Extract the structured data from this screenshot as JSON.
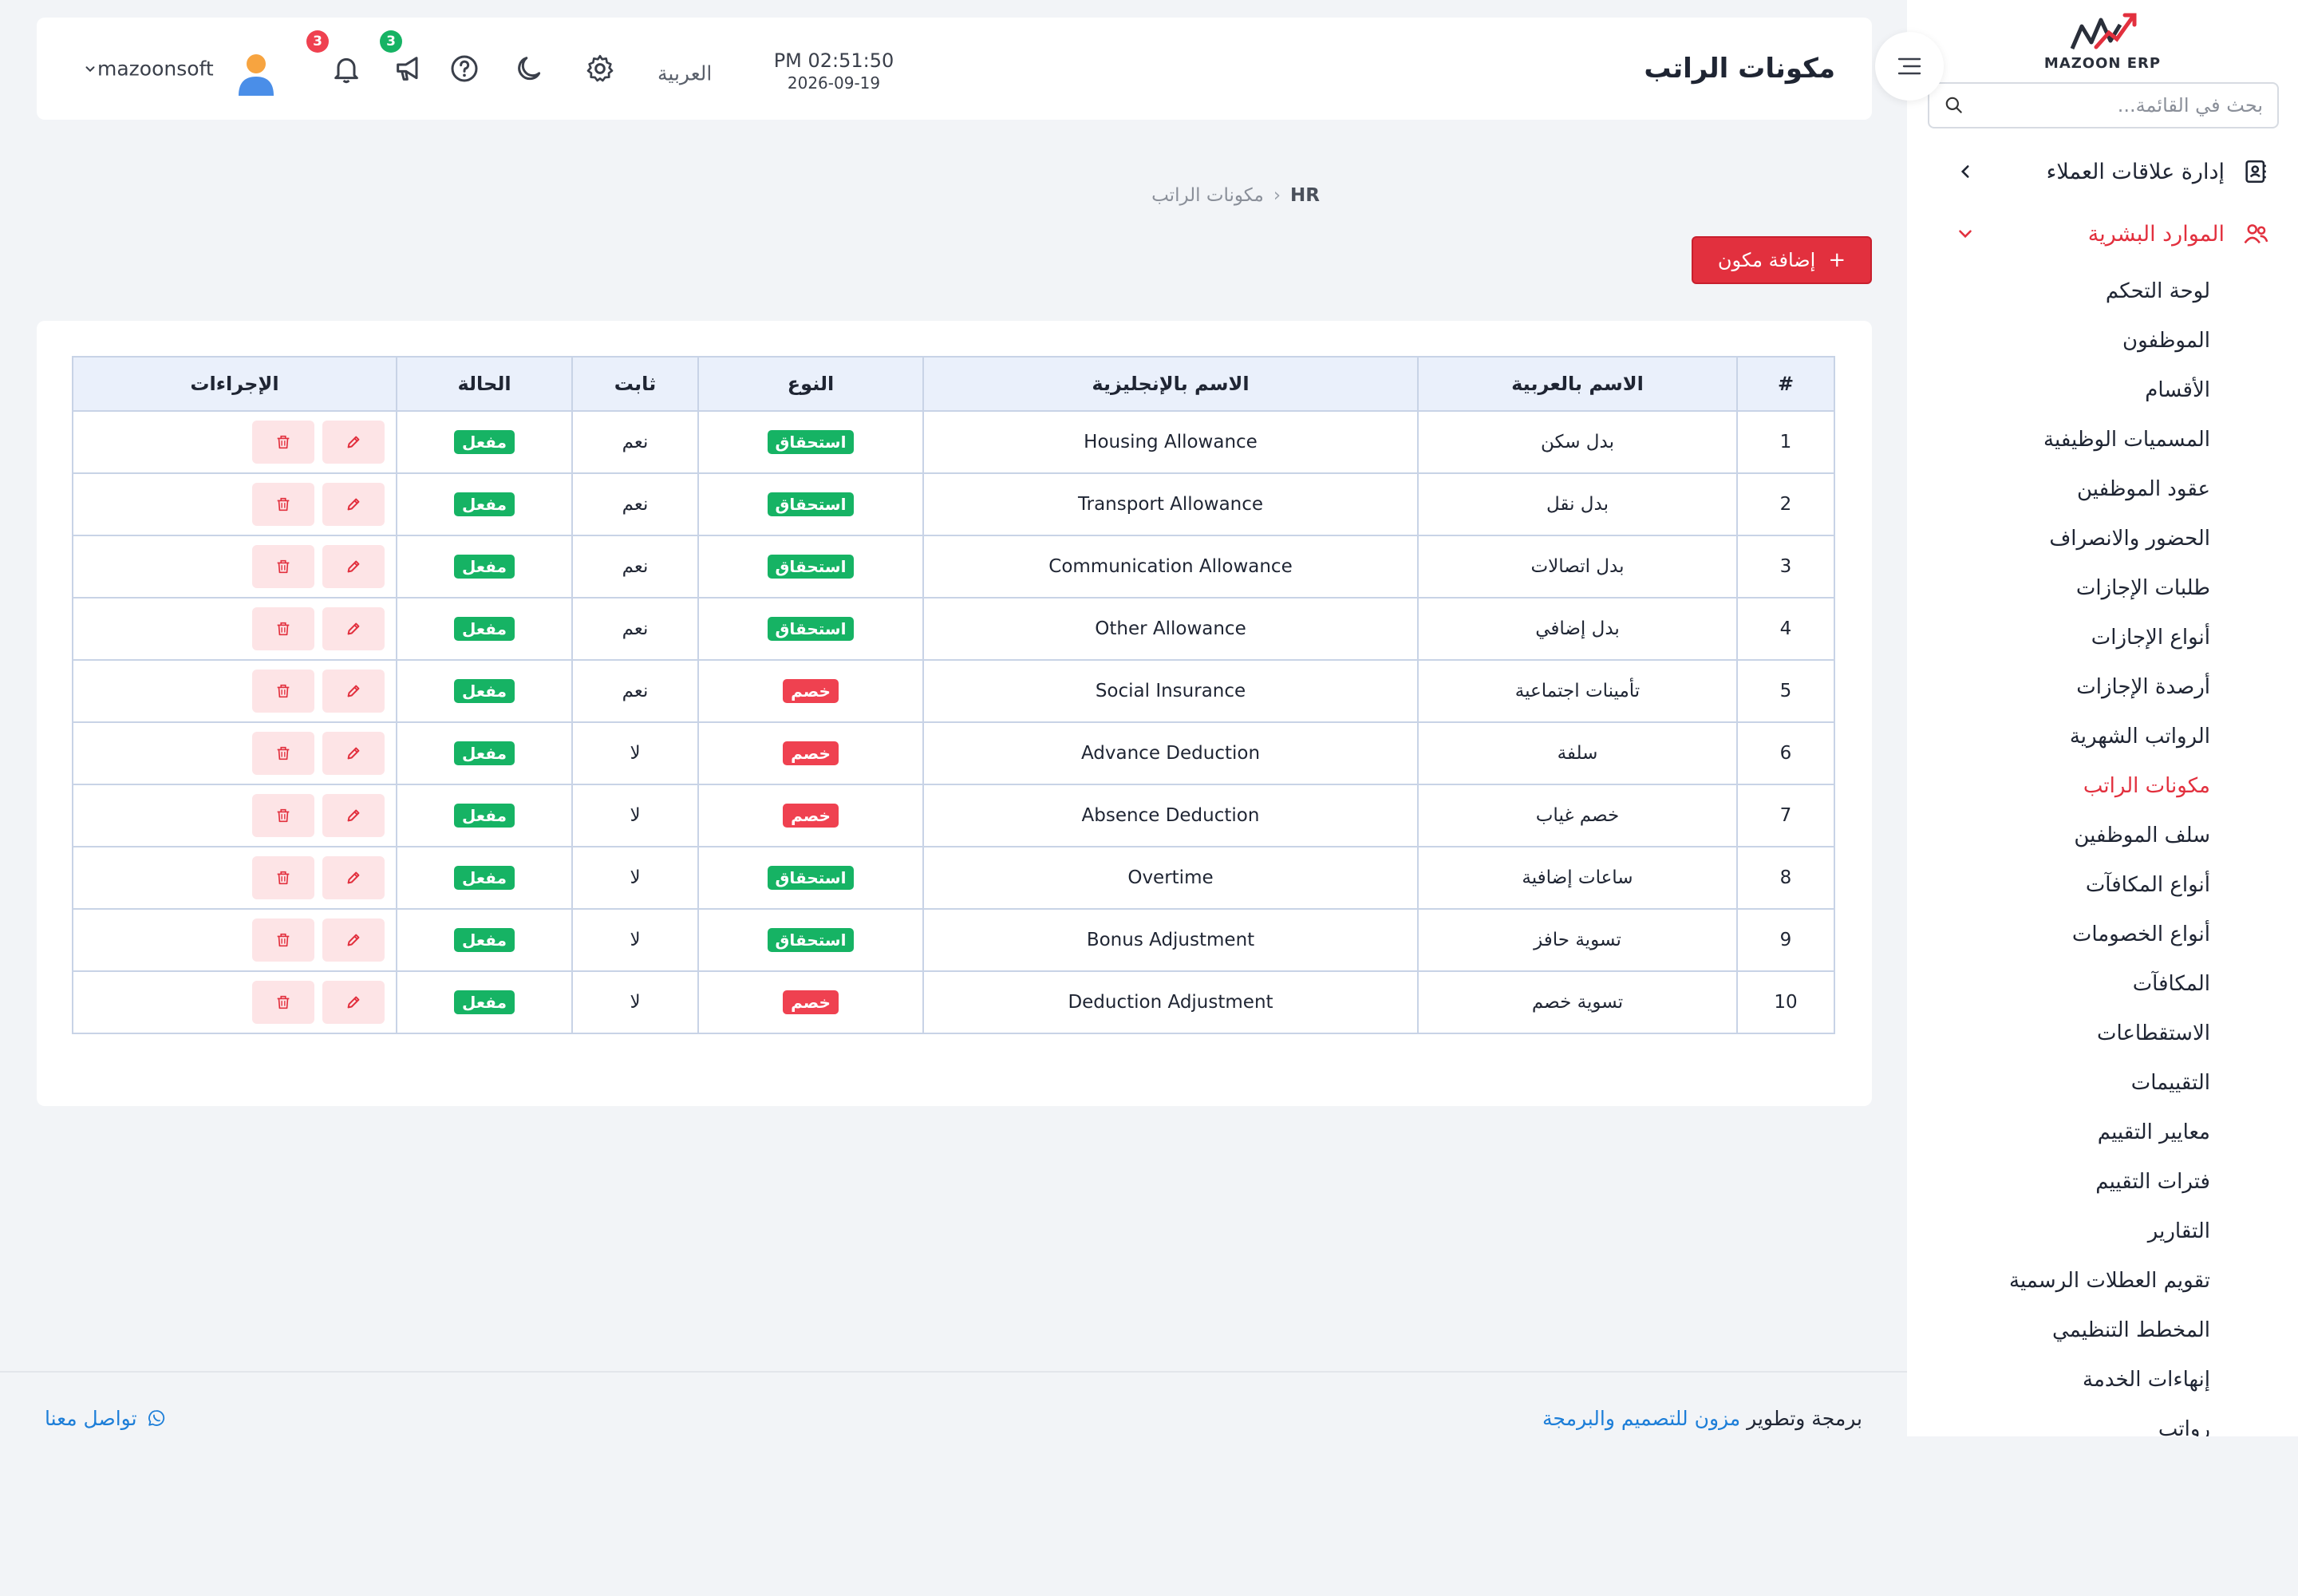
{
  "sidebar": {
    "logo_text": "MAZOON ERP",
    "search_placeholder": "بحث في القائمة...",
    "groups": [
      {
        "label": "إدارة علاقات العملاء"
      },
      {
        "label": "الموارد البشرية"
      }
    ],
    "items": [
      {
        "label": "لوحة التحكم"
      },
      {
        "label": "الموظفون"
      },
      {
        "label": "الأقسام"
      },
      {
        "label": "المسميات الوظيفية"
      },
      {
        "label": "عقود الموظفين"
      },
      {
        "label": "الحضور والانصراف"
      },
      {
        "label": "طلبات الإجازات"
      },
      {
        "label": "أنواع الإجازات"
      },
      {
        "label": "أرصدة الإجازات"
      },
      {
        "label": "الرواتب الشهرية"
      },
      {
        "label": "مكونات الراتب"
      },
      {
        "label": "سلف الموظفين"
      },
      {
        "label": "أنواع المكافآت"
      },
      {
        "label": "أنواع الخصومات"
      },
      {
        "label": "المكافآت"
      },
      {
        "label": "الاستقطاعات"
      },
      {
        "label": "التقييمات"
      },
      {
        "label": "معايير التقييم"
      },
      {
        "label": "فترات التقييم"
      },
      {
        "label": "التقارير"
      },
      {
        "label": "تقويم العطلات الرسمية"
      },
      {
        "label": "المخطط التنظيمي"
      },
      {
        "label": "إنهاءات الخدمة"
      },
      {
        "label": "رواتب"
      }
    ]
  },
  "header": {
    "title": "مكونات الراتب",
    "time": "PM 02:51:50",
    "date": "2026-09-19",
    "language": "العربية",
    "notifications_count": "3",
    "announcements_count": "3",
    "username": "mazoonsoft"
  },
  "breadcrumb": {
    "root": "HR",
    "current": "مكونات الراتب"
  },
  "add_button_label": "إضافة مكون",
  "table": {
    "headers": {
      "num": "#",
      "name_ar": "الاسم بالعربية",
      "name_en": "الاسم بالإنجليزية",
      "type": "النوع",
      "fixed": "ثابت",
      "status": "الحالة",
      "actions": "الإجراءات"
    },
    "rows": [
      {
        "num": "1",
        "name_ar": "بدل سكن",
        "name_en": "Housing Allowance",
        "type": "استحقاق",
        "type_color": "#16b364",
        "fixed": "نعم",
        "status": "مفعل"
      },
      {
        "num": "2",
        "name_ar": "بدل نقل",
        "name_en": "Transport Allowance",
        "type": "استحقاق",
        "type_color": "#16b364",
        "fixed": "نعم",
        "status": "مفعل"
      },
      {
        "num": "3",
        "name_ar": "بدل اتصالات",
        "name_en": "Communication Allowance",
        "type": "استحقاق",
        "type_color": "#16b364",
        "fixed": "نعم",
        "status": "مفعل"
      },
      {
        "num": "4",
        "name_ar": "بدل إضافي",
        "name_en": "Other Allowance",
        "type": "استحقاق",
        "type_color": "#16b364",
        "fixed": "نعم",
        "status": "مفعل"
      },
      {
        "num": "5",
        "name_ar": "تأمينات اجتماعية",
        "name_en": "Social Insurance",
        "type": "خصم",
        "type_color": "#ef4150",
        "fixed": "نعم",
        "status": "مفعل"
      },
      {
        "num": "6",
        "name_ar": "سلفة",
        "name_en": "Advance Deduction",
        "type": "خصم",
        "type_color": "#ef4150",
        "fixed": "لا",
        "status": "مفعل"
      },
      {
        "num": "7",
        "name_ar": "خصم غياب",
        "name_en": "Absence Deduction",
        "type": "خصم",
        "type_color": "#ef4150",
        "fixed": "لا",
        "status": "مفعل"
      },
      {
        "num": "8",
        "name_ar": "ساعات إضافية",
        "name_en": "Overtime",
        "type": "استحقاق",
        "type_color": "#16b364",
        "fixed": "لا",
        "status": "مفعل"
      },
      {
        "num": "9",
        "name_ar": "تسوية حافز",
        "name_en": "Bonus Adjustment",
        "type": "استحقاق",
        "type_color": "#16b364",
        "fixed": "لا",
        "status": "مفعل"
      },
      {
        "num": "10",
        "name_ar": "تسوية خصم",
        "name_en": "Deduction Adjustment",
        "type": "خصم",
        "type_color": "#ef4150",
        "fixed": "لا",
        "status": "مفعل"
      }
    ]
  },
  "footer": {
    "credit_prefix": "برمجة وتطوير",
    "credit_link": "مزون للتصميم والبرمجة",
    "contact": "تواصل معنا"
  },
  "colors": {
    "accent": "#e2303e",
    "success": "#16b364",
    "danger": "#ef4150",
    "link": "#1d7ed8"
  }
}
